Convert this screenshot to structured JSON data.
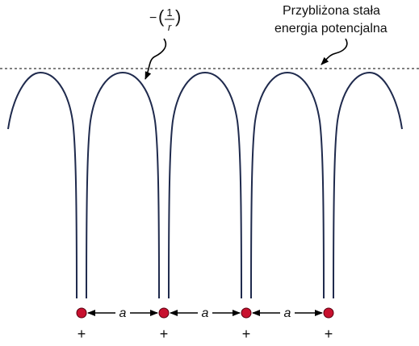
{
  "annotations": {
    "coulomb": {
      "sign": "−",
      "numerator": "1",
      "denominator": "r"
    },
    "constant": [
      "Przybliżona stała",
      "energia potencjalna"
    ]
  },
  "spacing_labels": [
    "a",
    "a",
    "a"
  ],
  "ion_labels": [
    "+",
    "+",
    "+",
    "+"
  ]
}
